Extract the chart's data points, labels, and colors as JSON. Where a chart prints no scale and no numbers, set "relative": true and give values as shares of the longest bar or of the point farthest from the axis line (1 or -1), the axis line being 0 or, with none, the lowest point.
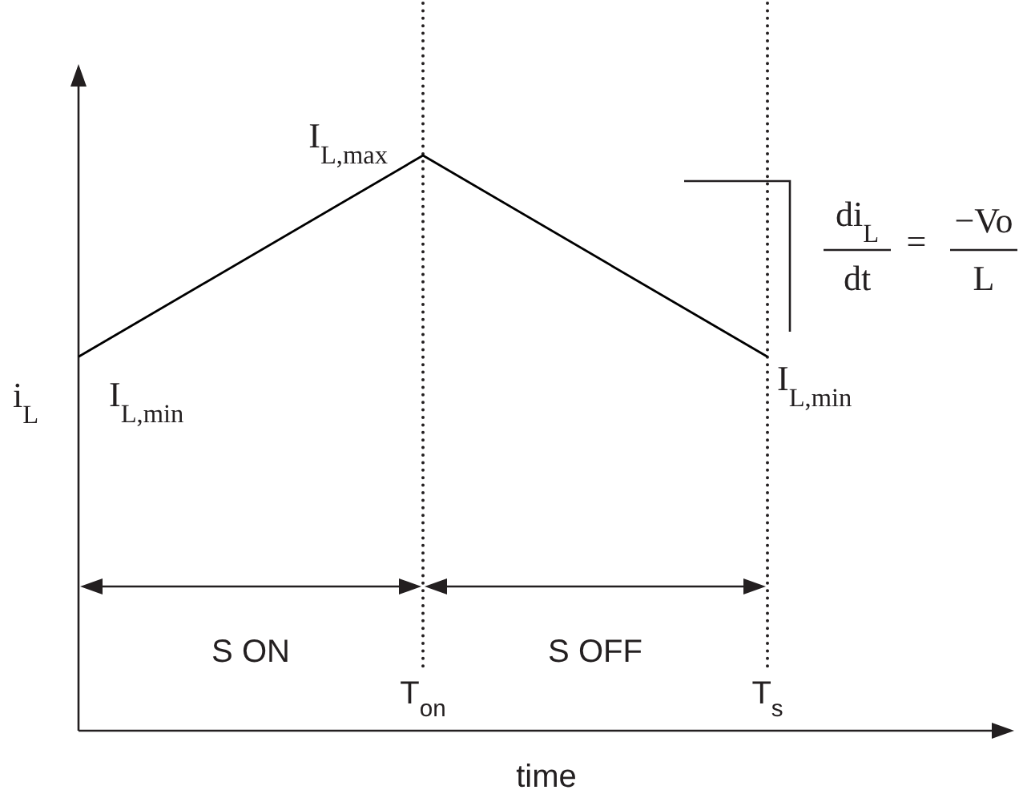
{
  "chart_data": {
    "type": "line",
    "relative": true,
    "xlabel": "time",
    "ylabel": "i$_{L}$",
    "categories": [
      null,
      "T$_{on}$",
      "T$_{s}$"
    ],
    "grid": "x",
    "series": [
      {
        "values": [
          0.65,
          1,
          0.65
        ],
        "color": "#000000"
      }
    ],
    "annotations": [
      "I$_{L,min}$",
      "I$_{L,max}$",
      "I$_{L,min}$",
      "S ON",
      "S OFF",
      "di$_{L}$",
      "dt",
      "=",
      "−Vo",
      "L"
    ]
  }
}
